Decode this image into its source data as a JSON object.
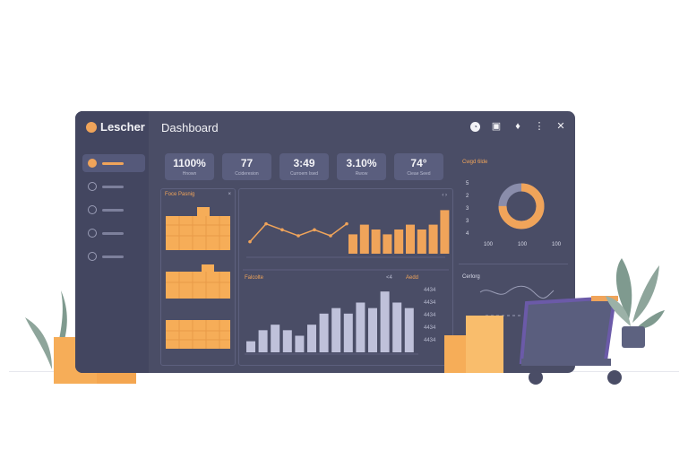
{
  "app": {
    "logo_text": "Lescher",
    "title": "Dashboard"
  },
  "header_icons": [
    "clock-icon",
    "calendar-icon",
    "location-icon",
    "more-icon",
    "close-icon"
  ],
  "header_glyphs": {
    "clock": "◔",
    "calendar": "▣",
    "location": "♦",
    "more": "⋮",
    "close": "✕"
  },
  "stats": [
    {
      "value": "1100%",
      "label": "Hnown"
    },
    {
      "value": "77",
      "label": "Ccideresion"
    },
    {
      "value": "3:49",
      "label": "Curroem Iswd"
    },
    {
      "value": "3.10%",
      "label": "Rwow"
    },
    {
      "value": "74°",
      "label": "Cieae Seed"
    }
  ],
  "left_panel": {
    "title": "Foce Pasnig",
    "close": "×",
    "controls": "‹ ›"
  },
  "main_panel": {
    "title": "Falcolte",
    "controls": "‹ ›",
    "mini_labels": [
      "<4",
      "Aedd"
    ],
    "right_values": [
      "4434",
      "4434",
      "4434",
      "4434",
      "4434"
    ]
  },
  "right_panel": {
    "title": "Cwgd 6lde",
    "axis_numbers": [
      "5",
      "2",
      "3",
      "3",
      "4"
    ],
    "scale_labels": [
      "100",
      "100",
      "100"
    ],
    "trend_title": "Cerlorg"
  },
  "colors": {
    "accent": "#f0a45a",
    "bars": "#bfc1da",
    "panel": "#4a4d66",
    "sidebar": "#434660"
  },
  "chart_data": [
    {
      "type": "bar",
      "title": "Falcolte",
      "series": [
        {
          "values": [
            2,
            4,
            5,
            4,
            3,
            5,
            7,
            8,
            7,
            9,
            8,
            11,
            9,
            8
          ]
        }
      ]
    },
    {
      "type": "line",
      "series": [
        {
          "values": [
            2,
            5,
            4,
            3,
            4,
            3,
            5
          ]
        }
      ]
    },
    {
      "type": "bar",
      "series": [
        {
          "values": [
            4,
            6,
            5,
            4,
            5,
            6,
            5,
            6,
            9
          ]
        }
      ]
    },
    {
      "type": "pie",
      "series": [
        {
          "values": [
            75,
            25
          ]
        }
      ]
    }
  ]
}
